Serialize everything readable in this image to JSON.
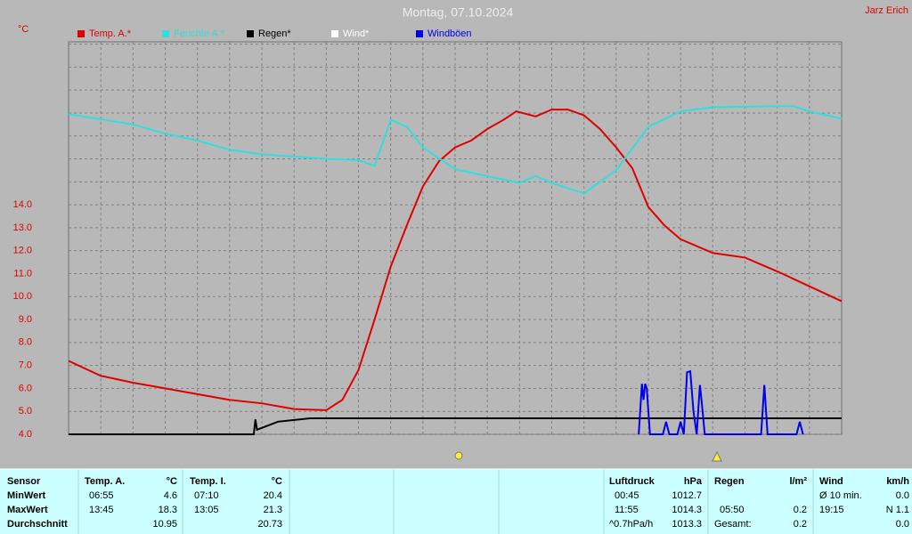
{
  "header": {
    "title": "Montag, 07.10.2024",
    "author": "Jarz Erich"
  },
  "chart_data": {
    "type": "line",
    "y_unit": "°C",
    "xlim": [
      0,
      24
    ],
    "xgrid": [
      1,
      2,
      3,
      4,
      5,
      6,
      7,
      8,
      9,
      10,
      11,
      12,
      13,
      14,
      15,
      16,
      17,
      18,
      19,
      20,
      21,
      22,
      23
    ],
    "ylim": [
      4,
      21.1
    ],
    "yticks": [
      {
        "value": 4,
        "label": "4.0"
      },
      {
        "value": 5,
        "label": "5.0"
      },
      {
        "value": 6,
        "label": "6.0"
      },
      {
        "value": 7,
        "label": "7.0"
      },
      {
        "value": 8,
        "label": "8.0"
      },
      {
        "value": 9,
        "label": "9.0"
      },
      {
        "value": 10,
        "label": "10.0"
      },
      {
        "value": 11,
        "label": "11.0"
      },
      {
        "value": 12,
        "label": "12.0"
      },
      {
        "value": 13,
        "label": "13.0"
      },
      {
        "value": 14,
        "label": "14.0"
      }
    ],
    "ygrid": [
      15,
      16,
      17,
      18,
      19,
      20,
      21
    ],
    "grid": true,
    "series": [
      {
        "name": "Temp. A.*",
        "color": "#e00000",
        "x": [
          0,
          1,
          2,
          3,
          4,
          5,
          6,
          7,
          8,
          8.5,
          9,
          9.5,
          10,
          10.5,
          11,
          11.5,
          12,
          12.5,
          13,
          13.5,
          13.9,
          14.5,
          15,
          15.5,
          16,
          16.5,
          17,
          17.5,
          18,
          18.5,
          19,
          20,
          21,
          22,
          23,
          24
        ],
        "values": [
          7.2,
          6.55,
          6.25,
          6.0,
          5.75,
          5.5,
          5.35,
          5.1,
          5.05,
          5.5,
          6.8,
          9.0,
          11.3,
          13.1,
          14.8,
          15.9,
          16.5,
          16.8,
          17.3,
          17.7,
          18.07,
          17.85,
          18.15,
          18.15,
          17.9,
          17.3,
          16.5,
          15.6,
          13.9,
          13.1,
          12.5,
          11.9,
          11.7,
          11.1,
          10.45,
          9.8
        ]
      },
      {
        "name": "Feuchte A.*",
        "color": "#33dddd",
        "x": [
          0,
          2,
          3,
          4,
          5,
          6,
          7,
          8,
          9,
          9.5,
          10,
          10.5,
          11,
          12,
          13,
          14,
          14.5,
          15,
          16,
          17,
          18,
          19,
          20,
          22,
          22.5,
          23,
          24
        ],
        "values": [
          17.95,
          17.5,
          17.1,
          16.8,
          16.4,
          16.2,
          16.1,
          16.0,
          15.95,
          15.7,
          17.7,
          17.4,
          16.5,
          15.55,
          15.25,
          14.95,
          15.25,
          14.95,
          14.5,
          15.5,
          17.4,
          18.07,
          18.25,
          18.3,
          18.3,
          18.07,
          17.75
        ]
      },
      {
        "name": "Regen*",
        "color": "#000000",
        "x": [
          0,
          5.75,
          5.8,
          5.85,
          6.5,
          7.5,
          24
        ],
        "values": [
          4.0,
          4.0,
          4.65,
          4.2,
          4.55,
          4.7,
          4.7
        ]
      },
      {
        "name": "Wind*",
        "color": "#ffffff",
        "x": [],
        "values": []
      },
      {
        "name": "Windböen",
        "color": "#0000ee",
        "x": [
          17.7,
          17.8,
          17.85,
          17.9,
          17.95,
          18.05,
          18.15,
          18.45,
          18.55,
          18.65,
          18.9,
          19.0,
          19.1,
          19.2,
          19.3,
          19.4,
          19.5,
          19.6,
          19.65,
          19.75,
          19.85,
          21.5,
          21.6,
          21.7,
          22.6,
          22.7,
          22.8
        ],
        "values": [
          4.0,
          6.2,
          5.5,
          6.2,
          6.0,
          4.0,
          4.0,
          4.0,
          4.55,
          4.0,
          4.0,
          4.55,
          4.0,
          6.7,
          6.75,
          5.0,
          4.0,
          6.15,
          5.5,
          4.0,
          4.0,
          4.0,
          6.15,
          4.0,
          4.0,
          4.55,
          4.0
        ]
      }
    ]
  },
  "table": {
    "header": [
      "Sensor",
      "Temp. A.",
      "°C",
      "Temp. I.",
      "°C",
      "Luftdruck",
      "hPa",
      "Regen",
      "l/m²",
      "Wind",
      "km/h"
    ],
    "rows": [
      [
        "MinWert",
        "06:55",
        "4.6",
        "07:10",
        "20.4",
        "00:45",
        "1012.7",
        null,
        null,
        "Ø 10 min.",
        "0.0"
      ],
      [
        "MaxWert",
        "13:45",
        "18.3",
        "13:05",
        "21.3",
        "11:55",
        "1014.3",
        "05:50",
        "0.2",
        "19:15",
        "N 1.1"
      ],
      [
        "Durchschnitt",
        null,
        "10.95",
        null,
        "20.73",
        "^0.7hPa/h",
        "1013.3",
        "Gesamt:",
        "0.2",
        null,
        "0.0"
      ]
    ]
  }
}
